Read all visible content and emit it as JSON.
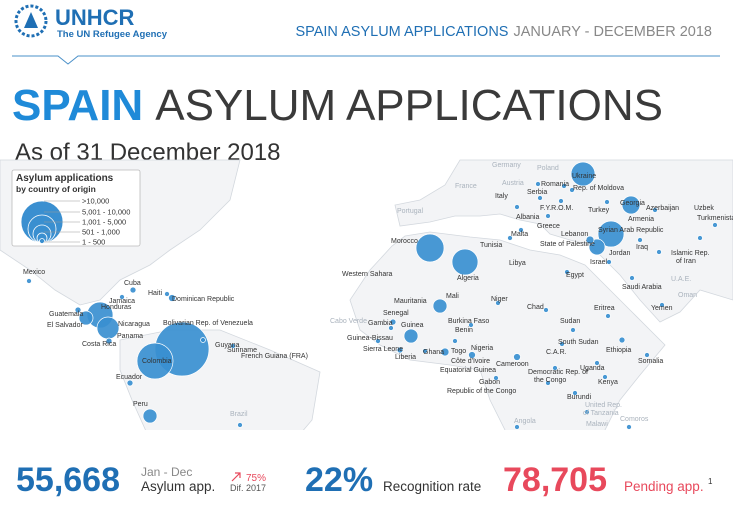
{
  "header": {
    "logo_name": "UNHCR",
    "logo_tagline": "The UN Refugee Agency",
    "report_title": "SPAIN ASYLUM APPLICATIONS",
    "report_period": "JANUARY - DECEMBER 2018"
  },
  "title": {
    "country": "SPAIN",
    "rest": "ASYLUM APPLICATIONS"
  },
  "subtitle": "As of 31 December 2018",
  "legend": {
    "title": "Asylum applications",
    "subtitle": "by country of origin",
    "classes": [
      ">10,000",
      "5,001 - 10,000",
      "1,001 - 5,000",
      "501 - 1,000",
      "1 - 500"
    ]
  },
  "map": {
    "labels": [
      "Germany",
      "Poland",
      "Ukraine",
      "Austria",
      "Romania",
      "Rep. of Moldova",
      "Serbia",
      "Italy",
      "F.Y.R.O.M.",
      "Georgia",
      "Azerbaijan",
      "Uzbek",
      "Albania",
      "Turkey",
      "Armenia",
      "Turkmenista",
      "Greece",
      "Lebanon",
      "Syrian Arab Republic",
      "Islamic Rep.",
      "of Iran",
      "Iraq",
      "State of Palestine",
      "Jordan",
      "Israel",
      "France",
      "Portugal",
      "Morocco",
      "Tunisia",
      "Algeria",
      "Libya",
      "Malta",
      "Egypt",
      "Saudi Arabia",
      "U.A.E.",
      "Oman",
      "Western Sahara",
      "Mauritania",
      "Mali",
      "Niger",
      "Chad",
      "Sudan",
      "Eritrea",
      "Yemen",
      "Senegal",
      "Gambia",
      "Guinea",
      "Guinea-Bissau",
      "Burkina Faso",
      "Benin",
      "Nigeria",
      "Sierra Leone",
      "Liberia",
      "Ghana",
      "Togo",
      "Côte d'Ivoire",
      "Equatorial Guinea",
      "Cameroon",
      "C.A.R.",
      "South Sudan",
      "Ethiopia",
      "Somalia",
      "Democratic Rep. of",
      "the Congo",
      "Uganda",
      "Kenya",
      "Gabon",
      "Republic of the Congo",
      "Burundi",
      "United Rep.",
      "of Tanzania",
      "Comoros",
      "Angola",
      "Malawi",
      "Cabo Verde",
      "Mexico",
      "Cuba",
      "Haiti",
      "Dominican Republic",
      "Jamaica",
      "Honduras",
      "Guatemala",
      "El Salvador",
      "Nicaragua",
      "Costa Rica",
      "Panama",
      "Bolivarian Rep. of Venezuela",
      "Guyana",
      "Suriname",
      "French Guiana (FRA)",
      "Colombia",
      "Ecuador",
      "Peru",
      "Brazil"
    ]
  },
  "stats": {
    "applications": "55,668",
    "period": "Jan - Dec",
    "applications_label": "Asylum app.",
    "difference": "75%",
    "difference_label": "Dif. 2017",
    "recognition": "22%",
    "recognition_label": "Recognition rate",
    "pending": "78,705",
    "pending_label": "Pending app.",
    "pending_note": "1"
  }
}
